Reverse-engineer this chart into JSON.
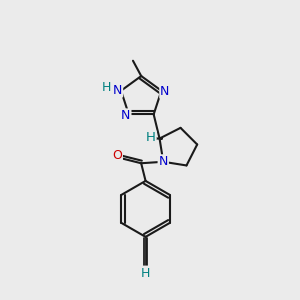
{
  "background_color": "#ebebeb",
  "atom_color_N": "#0000cc",
  "atom_color_O": "#cc0000",
  "atom_color_H": "#008080",
  "bond_color": "#1a1a1a",
  "font_size": 8.5,
  "fig_width": 3.0,
  "fig_height": 3.0,
  "dpi": 100,
  "xlim": [
    0,
    10
  ],
  "ylim": [
    0,
    10
  ]
}
